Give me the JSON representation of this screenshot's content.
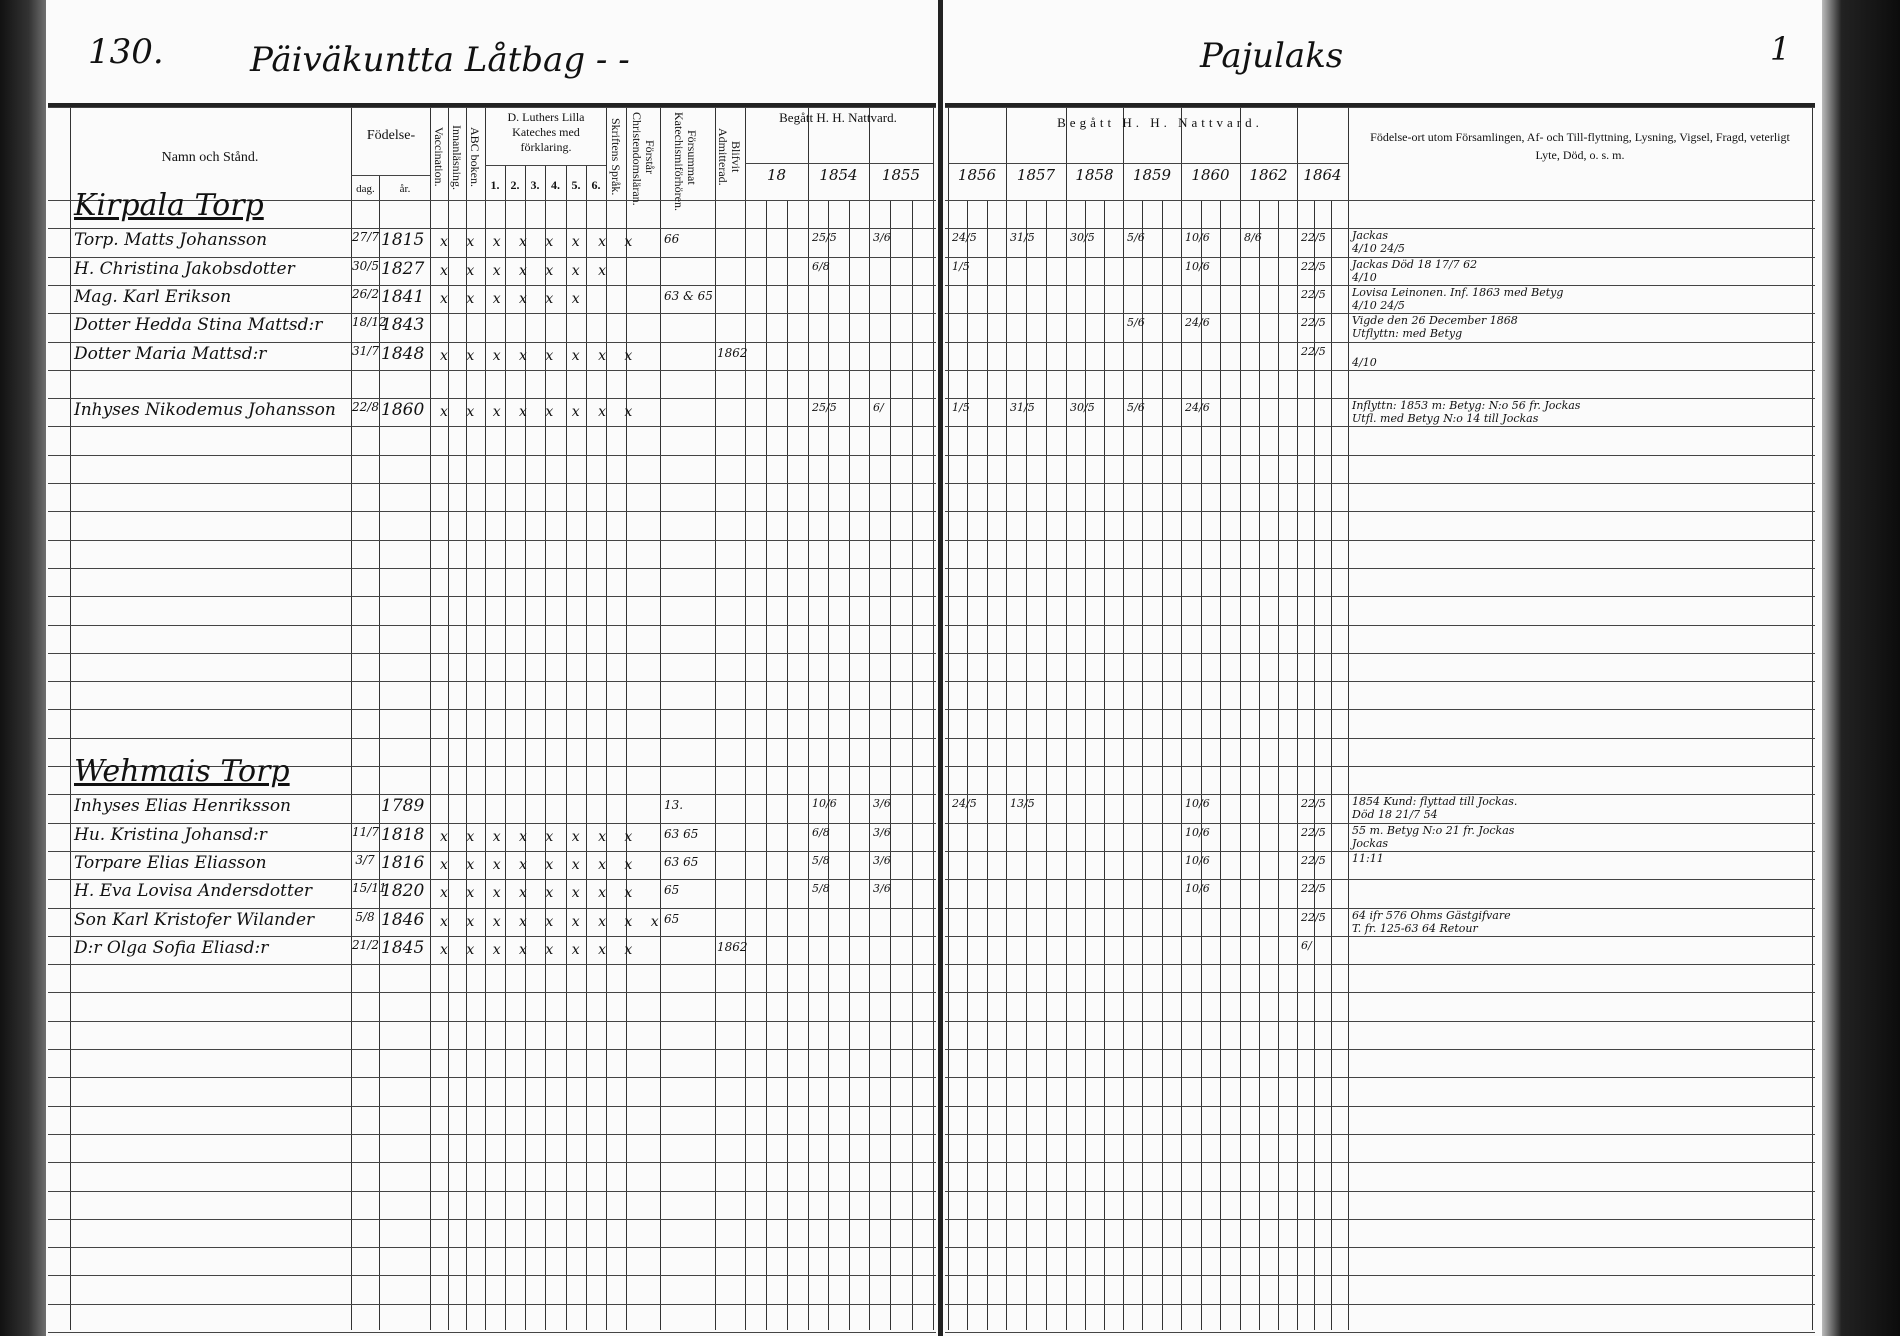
{
  "left_page": {
    "page_number": "130.",
    "title": "Päiväkuntta Låtbag - -",
    "headers": {
      "name": "Namn och Stånd.",
      "birth": "Födelse-",
      "birth_day": "dag.",
      "birth_year": "år.",
      "vaccination": "Vaccination.",
      "reading": "Innanläsning.",
      "abc": "ABC boken.",
      "catechism": "D. Luthers Lilla Kateches med förklaring.",
      "catechism_parts": [
        "1.",
        "2.",
        "3.",
        "4.",
        "5.",
        "6."
      ],
      "scripture": "Skriftens Språk.",
      "understands": "Förstår Christendomsläran.",
      "missed": "Försummat Katechismiförhören.",
      "admitted": "Blifvit Admitterad.",
      "communion": "Begått H. H. Nattvard.",
      "years": [
        "18",
        "1854",
        "1855"
      ]
    }
  },
  "right_page": {
    "title": "Pajulaks",
    "page_number": "1",
    "headers": {
      "communion": "Begått H. H. Nattvard.",
      "years": [
        "1856",
        "1857",
        "1858",
        "1859",
        "1860",
        "1862",
        "1864"
      ],
      "notes": "Födelse-ort utom Församlingen, Af- och Till-flyttning, Lysning, Vigsel, Fragd, veterligt Lyte, Död, o. s. m."
    }
  },
  "entries": [
    {
      "heading": "Kirpala Torp"
    },
    {
      "name": "Torp. Matts Johansson",
      "day": "27/7",
      "year": "1815",
      "marks": "x x x x x x x x",
      "missed": "66",
      "communion": {
        "1854": "25/5",
        "1855": "3/6",
        "1856": "24/5",
        "1857": "31/5",
        "1858": "30/5",
        "1859": "5/6",
        "1860": "10/6",
        "1862": "8/6",
        "1864": "22/5"
      },
      "note": "Jackas",
      "note2": "4/10  24/5"
    },
    {
      "name": "H. Christina Jakobsdotter",
      "day": "30/5",
      "year": "1827",
      "marks": "x x x x x x x",
      "missed": "",
      "communion": {
        "1854": "6/8",
        "1856": "1/5",
        "1860": "10/6",
        "1864": "22/5"
      },
      "note": "Jackas  Död 18 17/7 62",
      "note2": "4/10"
    },
    {
      "name": "Mag. Karl Erikson",
      "day": "26/2",
      "year": "1841",
      "marks": "x x x x x x",
      "missed": "63 & 65",
      "communion": {
        "1864": "22/5"
      },
      "note": "Lovisa Leinonen. Inf. 1863 med Betyg",
      "note2": "4/10  24/5"
    },
    {
      "name": "Dotter Hedda Stina Mattsd:r",
      "day": "18/12",
      "year": "1843",
      "marks": "",
      "missed": "",
      "communion": {
        "1859": "5/6",
        "1860": "24/6",
        "1864": "22/5"
      },
      "note": "Vigde den 26 December 1868",
      "note2": "Utflyttn: med Betyg"
    },
    {
      "name": "Dotter Maria Mattsd:r",
      "day": "31/7",
      "year": "1848",
      "marks": "x x x x x x x x",
      "missed": "",
      "admitted": "1862",
      "communion": {
        "1864": "22/5"
      },
      "note": "",
      "note2": "4/10"
    },
    {},
    {
      "name": "Inhyses Nikodemus Johansson",
      "day": "22/8",
      "year": "1860",
      "marks": "x x x x x x x x",
      "missed": "",
      "communion": {
        "1854": "25/5",
        "1855": "6/",
        "1856": "1/5",
        "1857": "31/5",
        "1858": "30/5",
        "1859": "5/6",
        "1860": "24/6"
      },
      "note": "Inflyttn: 1853 m: Betyg: N:o 56 fr. Jockas",
      "note2": "Utfl. med Betyg N:o 14 till Jockas"
    },
    {},
    {},
    {},
    {},
    {},
    {},
    {},
    {},
    {},
    {},
    {},
    {},
    {
      "heading": "Wehmais Torp"
    },
    {
      "name": "Inhyses Elias Henriksson",
      "day": "",
      "year": "1789",
      "marks": "",
      "missed": "13.",
      "communion": {
        "1854": "10/6",
        "1855": "3/6",
        "1856": "24/5",
        "1857": "13/5",
        "1860": "10/6",
        "1864": "22/5"
      },
      "note": "1854 Kund: flyttad till Jockas.",
      "note2": "Död 18 21/7 54"
    },
    {
      "name": "Hu. Kristina Johansd:r",
      "day": "11/7",
      "year": "1818",
      "marks": "x x x x x x x x",
      "missed": "63 65",
      "communion": {
        "1854": "6/8",
        "1855": "3/6",
        "1860": "10/6",
        "1864": "22/5"
      },
      "note": "55 m. Betyg N:o 21 fr. Jockas",
      "note2": "Jockas"
    },
    {
      "name": "Torpare Elias Eliasson",
      "day": "3/7",
      "year": "1816",
      "marks": "x x x x x x x x",
      "missed": "63 65",
      "communion": {
        "1854": "5/8",
        "1855": "3/6",
        "1860": "10/6",
        "1864": "22/5"
      },
      "note": "11:11",
      "note2": ""
    },
    {
      "name": "H. Eva Lovisa Andersdotter",
      "day": "15/11",
      "year": "1820",
      "marks": "x x x x x x x x",
      "missed": "65",
      "communion": {
        "1854": "5/8",
        "1855": "3/6",
        "1860": "10/6",
        "1864": "22/5"
      },
      "note": "",
      "note2": ""
    },
    {
      "name": "Son Karl Kristofer Wilander",
      "day": "5/8",
      "year": "1846",
      "marks": "x x x x x x x x x",
      "missed": "65",
      "communion": {
        "1864": "22/5"
      },
      "note": "64 ifr 576 Ohms Gästgifvare",
      "note2": "T. fr. 125-63 64 Retour"
    },
    {
      "name": "D:r Olga Sofia Eliasd:r",
      "day": "21/2",
      "year": "1845",
      "marks": "x x x x x x x x",
      "missed": "",
      "admitted": "1862",
      "communion": {
        "1864": "6/"
      },
      "note": "",
      "note2": ""
    }
  ],
  "colors": {
    "paper": "#fbfbfb",
    "ink": "#111111",
    "border": "#1a1a1a"
  }
}
